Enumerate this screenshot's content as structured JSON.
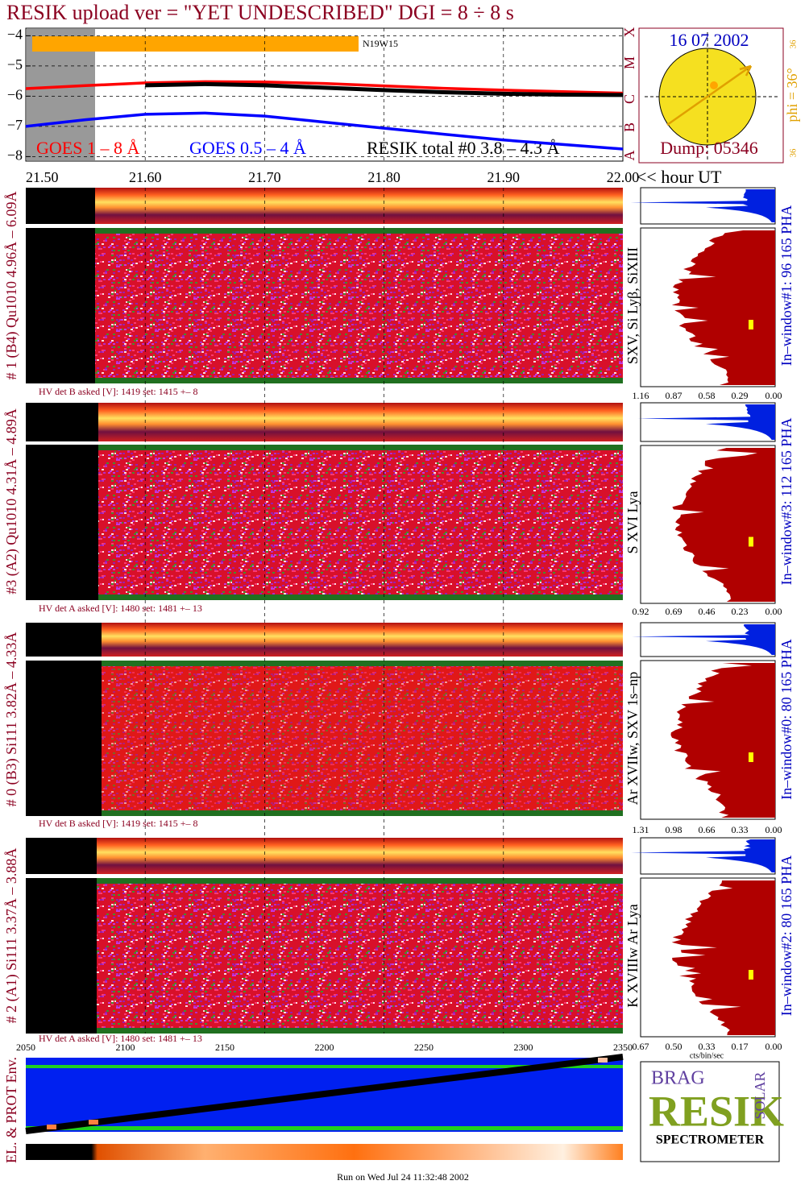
{
  "header": {
    "title": "RESIK upload ver = \"YET UNDESCRIBED\"  DGI =   8 ÷   8 s"
  },
  "chart_data": {
    "type": "line",
    "x": [
      21.5,
      21.55,
      21.6,
      21.65,
      21.7,
      21.75,
      21.8,
      21.85,
      21.9,
      21.95,
      22.0
    ],
    "series": [
      {
        "name": "GOES 1 – 8 Å",
        "color": "#ff0000",
        "values": [
          -5.75,
          -5.65,
          -5.56,
          -5.52,
          -5.53,
          -5.58,
          -5.66,
          -5.74,
          -5.8,
          -5.85,
          -5.9
        ]
      },
      {
        "name": "GOES 0.5 – 4 Å",
        "color": "#0000ff",
        "values": [
          -7.0,
          -6.78,
          -6.6,
          -6.56,
          -6.66,
          -6.86,
          -7.06,
          -7.26,
          -7.45,
          -7.6,
          -7.75
        ]
      },
      {
        "name": "RESIK total #0  3.8 – 4.3 Å",
        "color": "#000000",
        "values": [
          null,
          null,
          -5.64,
          -5.6,
          -5.64,
          -5.72,
          -5.8,
          -5.87,
          -5.92,
          -5.95,
          -5.96
        ]
      }
    ],
    "xlim": [
      21.5,
      22.0
    ],
    "xticks": [
      {
        "value": 21.5,
        "label": "21.50"
      },
      {
        "value": 21.6,
        "label": "21.60"
      },
      {
        "value": 21.7,
        "label": "21.70"
      },
      {
        "value": 21.8,
        "label": "21.80"
      },
      {
        "value": 21.9,
        "label": "21.90"
      },
      {
        "value": 22.0,
        "label": "22.00"
      }
    ],
    "x_label": "<< hour UT",
    "ylim": [
      -8.15,
      -3.75
    ],
    "yticks": [
      {
        "value": -4,
        "label": "−4"
      },
      {
        "value": -5,
        "label": "−5"
      },
      {
        "value": -6,
        "label": "−6"
      },
      {
        "value": -7,
        "label": "−7"
      },
      {
        "value": -8,
        "label": "−8"
      }
    ],
    "grid": true,
    "annotation": "N19W15",
    "class_labels": [
      "A",
      "B",
      "C",
      "M",
      "X"
    ]
  },
  "sun": {
    "date": "16 07 2002",
    "phi": "phi = 36°",
    "phi_top": "36",
    "phi_bottom": "36",
    "dump": "Dump: 05346"
  },
  "detectors": [
    {
      "left_label": "# 1 (B4) Qu1010 4.96Å – 6.09Å",
      "lines": "SXV, Si Lyβ, SiXIII",
      "window": "In–window#1:   96 165 PHA",
      "hv": "HV det B asked [V]:  1419 set:  1415  +–   8",
      "hist_ticks": [
        "1.16",
        "0.87",
        "0.58",
        "0.29",
        "0.00"
      ]
    },
    {
      "left_label": "#3 (A2) Qu1010  4.31Å – 4.89Å",
      "lines": "S XVI Lya",
      "window": "In–window#3:  112 165 PHA",
      "hv": "HV det A asked [V]:  1480 set:  1481  +–   13",
      "hist_ticks": [
        "0.92",
        "0.69",
        "0.46",
        "0.23",
        "0.00"
      ]
    },
    {
      "left_label": "# 0 (B3) Si111  3.82Å – 4.33Å",
      "lines": "Ar XVIIw, SXV 1s–np",
      "window": "In–window#0:   80 165 PHA",
      "hv": "HV det B asked [V]:  1419 set:  1415  +–   8",
      "hist_ticks": [
        "1.31",
        "0.98",
        "0.66",
        "0.33",
        "0.00"
      ]
    },
    {
      "left_label": "# 2 (A1) Si111  3.37Å – 3.88Å",
      "lines": "K XVIIIw  Ar Lya",
      "window": "In–window#2:   80 165 PHA",
      "hv": "HV det A asked [V]:  1480 set:  1481  +–   13",
      "hist_ticks": [
        "0.67",
        "0.50",
        "0.33",
        "0.17",
        "0.00"
      ]
    }
  ],
  "hist_unit": "cts/bin/sec",
  "env": {
    "label": "EL. & PROT Env.",
    "ticks": [
      "2050",
      "2100",
      "2150",
      "2200",
      "2250",
      "2300",
      "2350"
    ]
  },
  "logo": {
    "brand": "RESIK",
    "top": "BRAG",
    "side": "SOLAR",
    "bottom": "SPECTROMETER"
  },
  "footer": "Run on Wed Jul 24 11:32:48 2002"
}
